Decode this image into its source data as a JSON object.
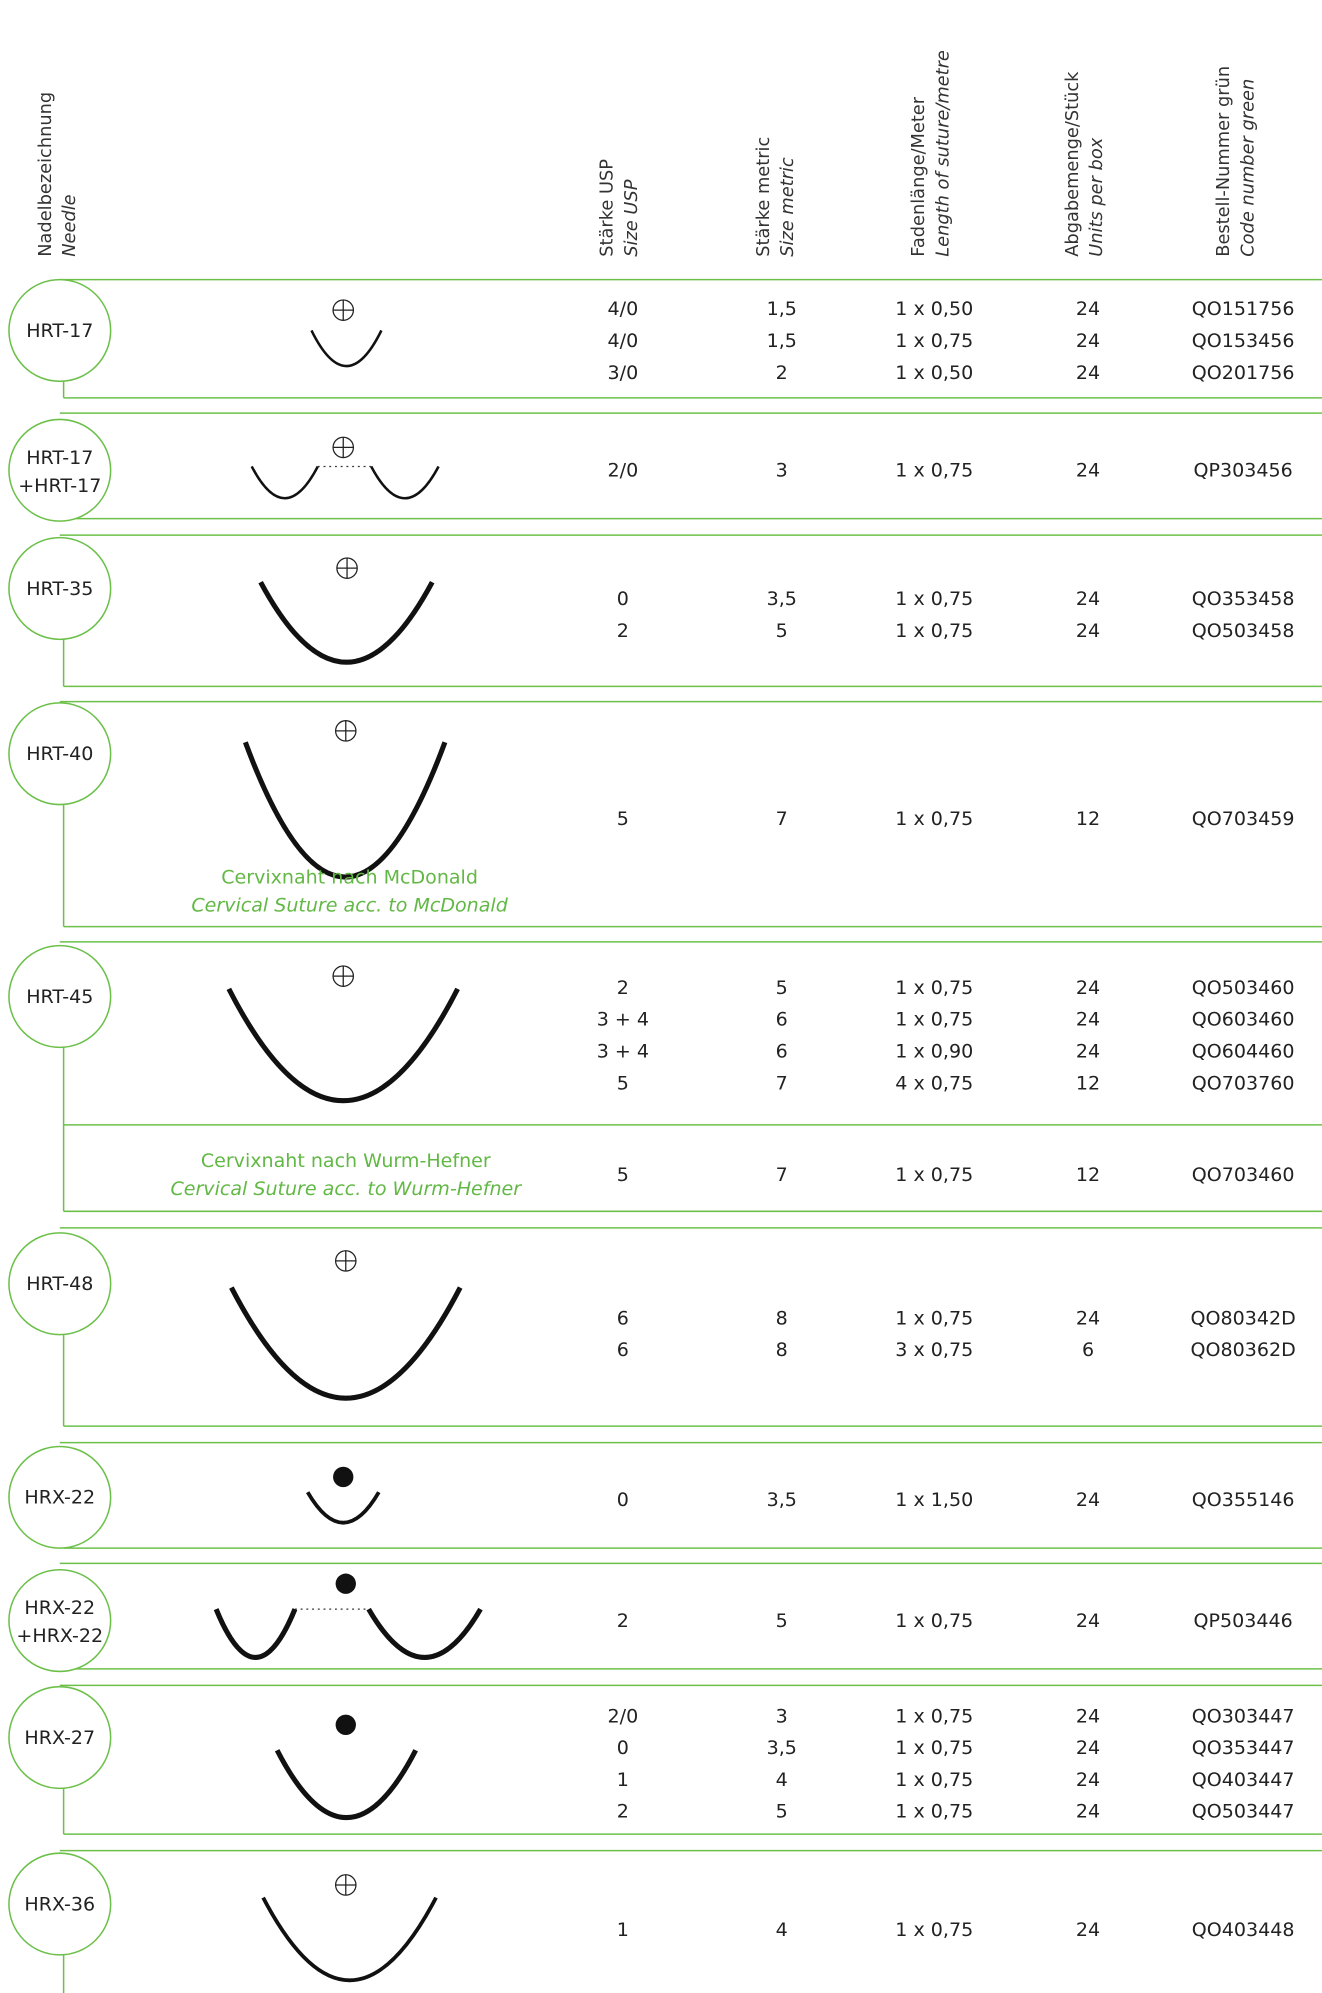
{
  "header": {
    "columns": [
      {
        "de": "Nadelbezeichnung",
        "en": "Needle"
      },
      {
        "de": "Stärke USP",
        "en": "Size USP"
      },
      {
        "de": "Stärke metric",
        "en": "Size metric"
      },
      {
        "de": "Fadenlänge/Meter",
        "en": "Length of suture/metre"
      },
      {
        "de": "Abgabemenge/Stück",
        "en": "Units per box"
      },
      {
        "de": "Bestell-Nummer grün",
        "en": "Code number green"
      }
    ]
  },
  "groups": [
    {
      "needle": [
        "HRT-17"
      ],
      "rows": [
        [
          "4/0",
          "1,5",
          "1 x 0,50",
          "24",
          "QO151756"
        ],
        [
          "4/0",
          "1,5",
          "1 x 0,75",
          "24",
          "QO153456"
        ],
        [
          "3/0",
          "2",
          "1 x 0,50",
          "24",
          "QO201756"
        ]
      ]
    },
    {
      "needle": [
        "HRT-17",
        "+HRT-17"
      ],
      "rows": [
        [
          "2/0",
          "3",
          "1 x 0,75",
          "24",
          "QP303456"
        ]
      ]
    },
    {
      "needle": [
        "HRT-35"
      ],
      "rows": [
        [
          "0",
          "3,5",
          "1 x 0,75",
          "24",
          "QO353458"
        ],
        [
          "2",
          "5",
          "1 x 0,75",
          "24",
          "QO503458"
        ]
      ]
    },
    {
      "needle": [
        "HRT-40"
      ],
      "rows": [
        [
          "5",
          "7",
          "1 x 0,75",
          "12",
          "QO703459"
        ]
      ],
      "note": {
        "de": "Cervixnaht nach McDonald",
        "en": "Cervical Suture acc. to McDonald"
      }
    },
    {
      "needle": [
        "HRT-45"
      ],
      "rows": [
        [
          "2",
          "5",
          "1 x 0,75",
          "24",
          "QO503460"
        ],
        [
          "3 + 4",
          "6",
          "1 x 0,75",
          "24",
          "QO603460"
        ],
        [
          "3 + 4",
          "6",
          "1 x 0,90",
          "24",
          "QO604460"
        ],
        [
          "5",
          "7",
          "4 x 0,75",
          "12",
          "QO703760"
        ]
      ],
      "sub": {
        "note": {
          "de": "Cervixnaht nach Wurm-Hefner",
          "en": "Cervical Suture acc. to Wurm-Hefner"
        },
        "rows": [
          [
            "5",
            "7",
            "1 x 0,75",
            "12",
            "QO703460"
          ]
        ]
      }
    },
    {
      "needle": [
        "HRT-48"
      ],
      "rows": [
        [
          "6",
          "8",
          "1 x 0,75",
          "24",
          "QO80342D"
        ],
        [
          "6",
          "8",
          "3 x 0,75",
          "6",
          "QO80362D"
        ]
      ]
    },
    {
      "needle": [
        "HRX-22"
      ],
      "rows": [
        [
          "0",
          "3,5",
          "1 x 1,50",
          "24",
          "QO355146"
        ]
      ]
    },
    {
      "needle": [
        "HRX-22",
        "+HRX-22"
      ],
      "rows": [
        [
          "2",
          "5",
          "1 x 0,75",
          "24",
          "QP503446"
        ]
      ]
    },
    {
      "needle": [
        "HRX-27"
      ],
      "rows": [
        [
          "2/0",
          "3",
          "1 x 0,75",
          "24",
          "QO303447"
        ],
        [
          "0",
          "3,5",
          "1 x 0,75",
          "24",
          "QO353447"
        ],
        [
          "1",
          "4",
          "1 x 0,75",
          "24",
          "QO403447"
        ],
        [
          "2",
          "5",
          "1 x 0,75",
          "24",
          "QO503447"
        ]
      ]
    },
    {
      "needle": [
        "HRX-36"
      ],
      "rows": [
        [
          "1",
          "4",
          "1 x 0,75",
          "24",
          "QO403448"
        ]
      ]
    }
  ]
}
